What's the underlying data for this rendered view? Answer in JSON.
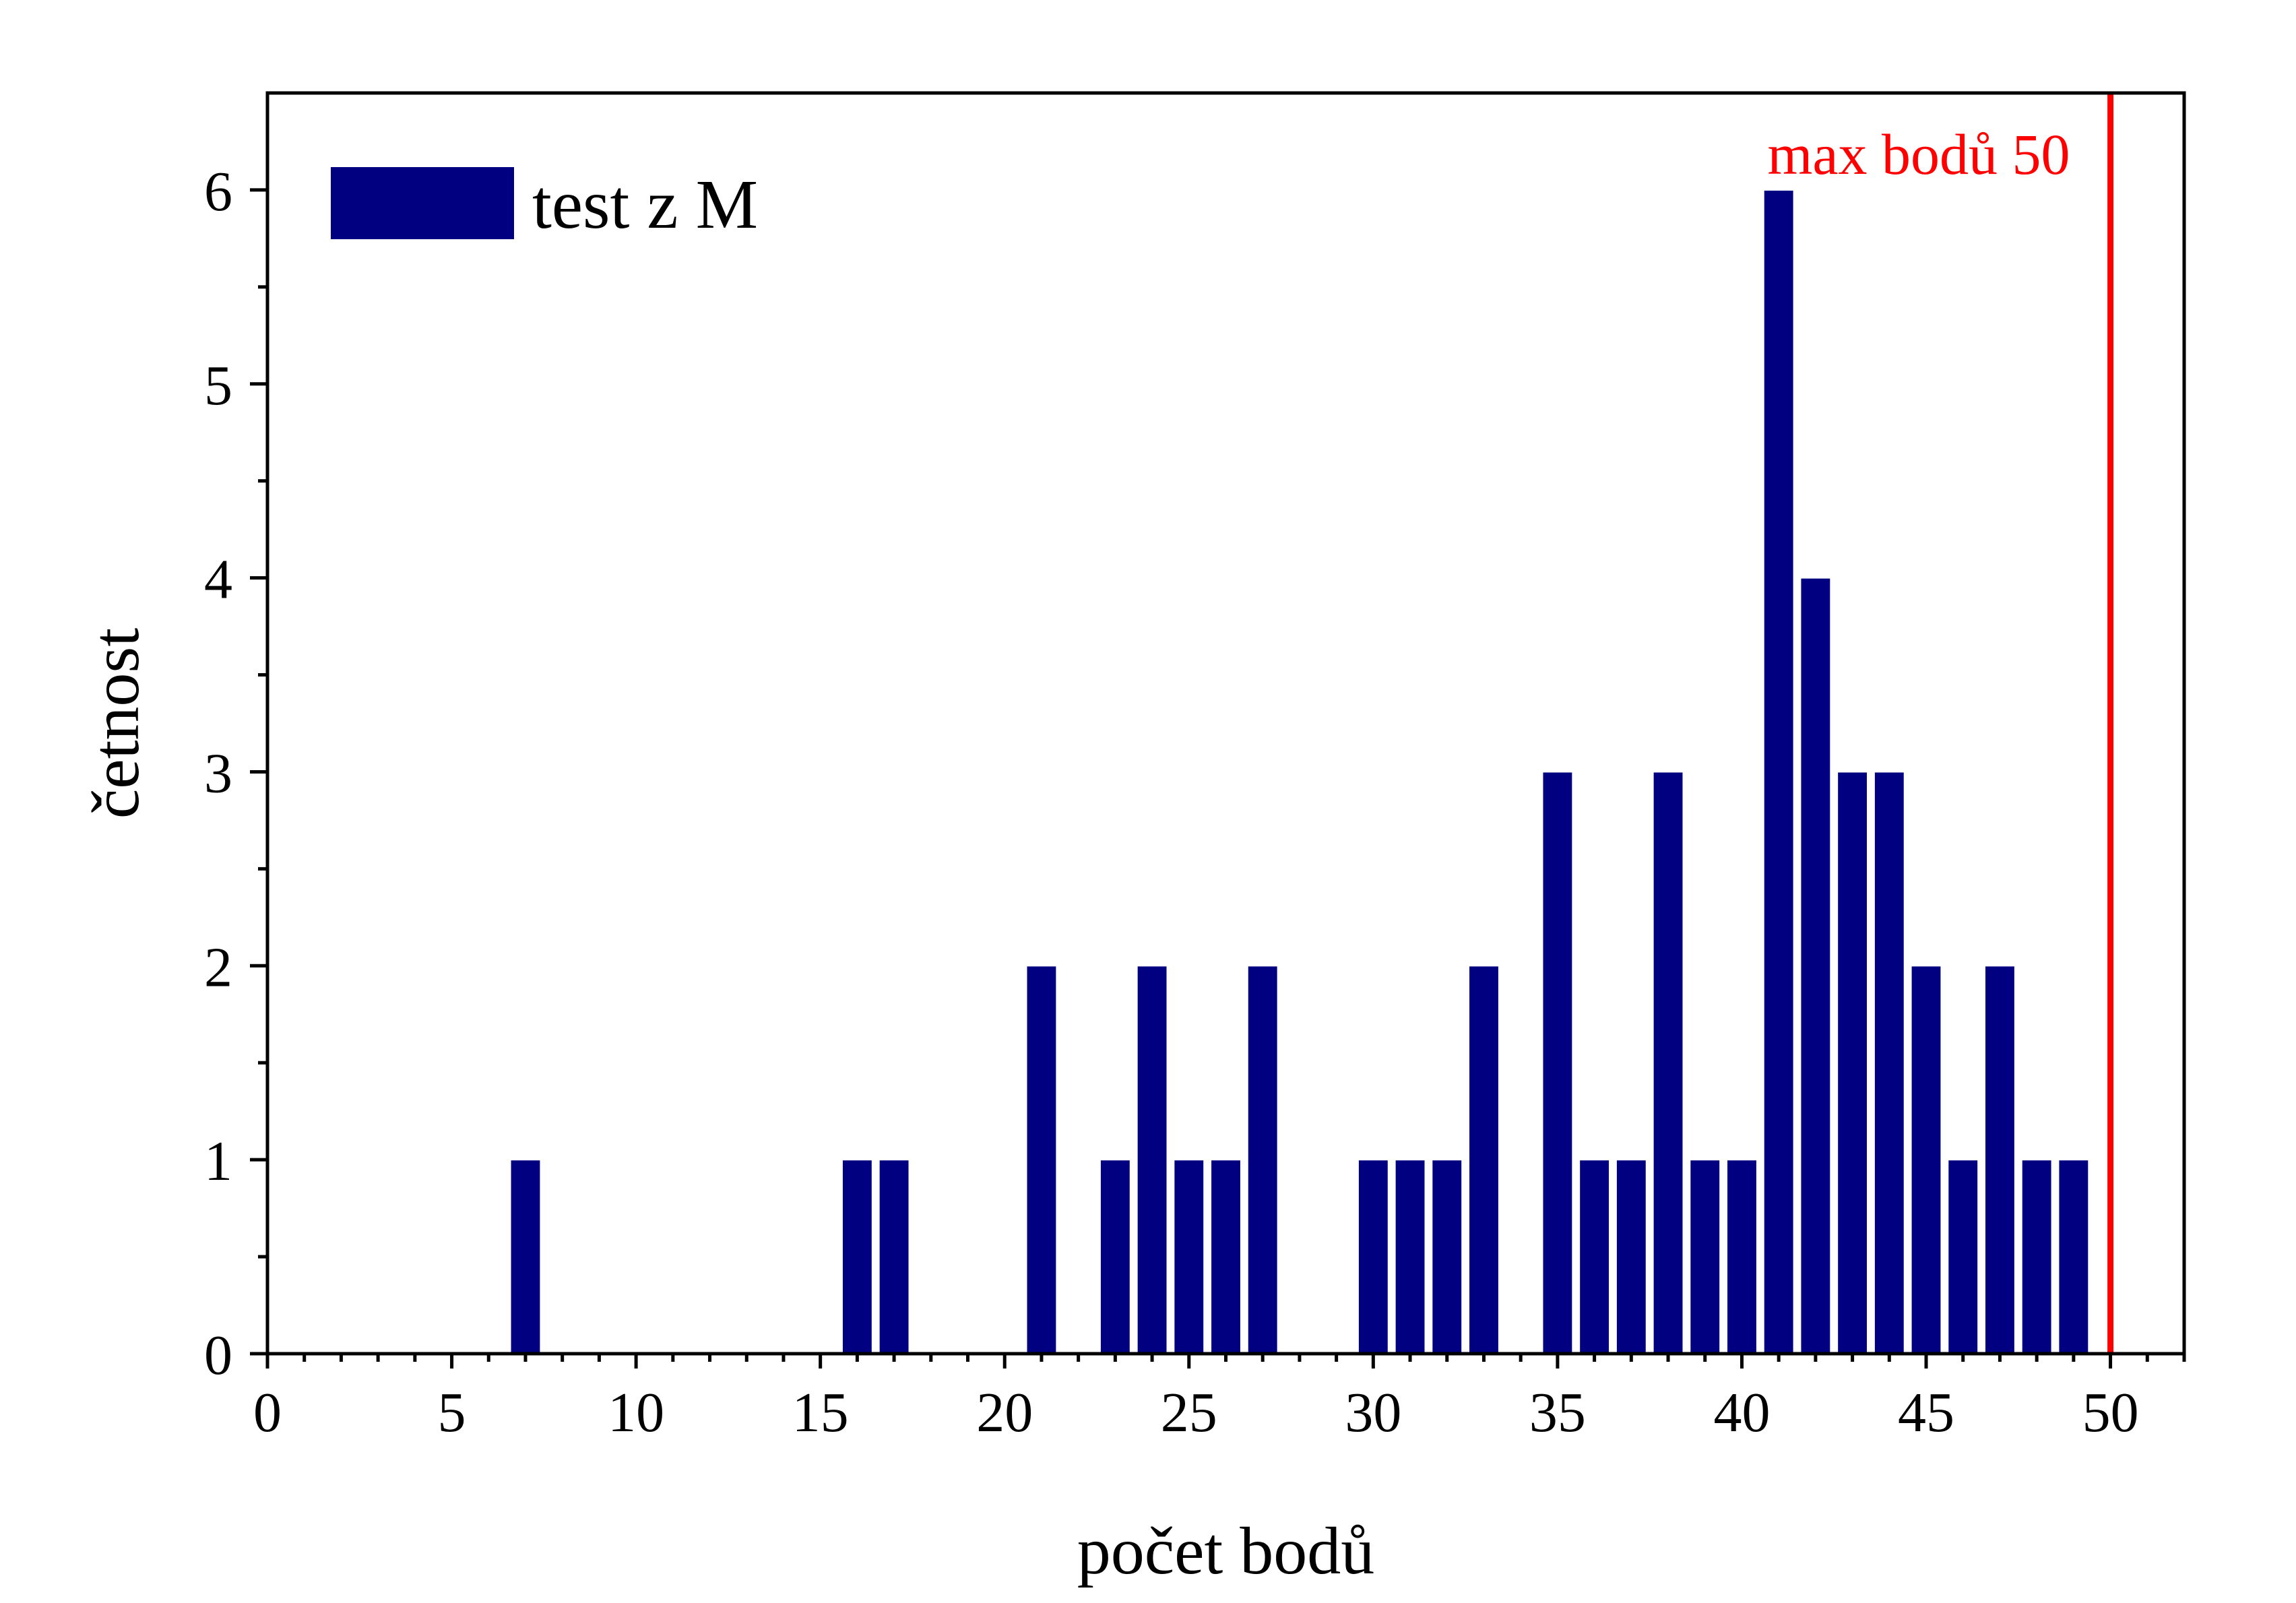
{
  "chart_data": {
    "type": "bar",
    "xlabel": "počet bodů",
    "ylabel": "četnost",
    "xlim": [
      0,
      52
    ],
    "ylim": [
      0,
      6.5
    ],
    "x_major_ticks": [
      0,
      5,
      10,
      15,
      20,
      25,
      30,
      35,
      40,
      45,
      50
    ],
    "x_tick_labels": [
      "0",
      "5",
      "10",
      "15",
      "20",
      "25",
      "30",
      "35",
      "40",
      "45",
      "50"
    ],
    "y_major_ticks": [
      0,
      1,
      2,
      3,
      4,
      5,
      6
    ],
    "y_tick_labels": [
      "0",
      "1",
      "2",
      "3",
      "4",
      "5",
      "6"
    ],
    "grid": false,
    "legend_position": "top-left",
    "series": [
      {
        "name": "test z M",
        "color": "#000080",
        "x": [
          7,
          16,
          17,
          21,
          23,
          24,
          25,
          26,
          27,
          30,
          31,
          32,
          33,
          35,
          36,
          37,
          38,
          39,
          40,
          41,
          42,
          43,
          44,
          45,
          46,
          47,
          48,
          49
        ],
        "values": [
          1,
          1,
          1,
          2,
          1,
          2,
          1,
          1,
          2,
          1,
          1,
          1,
          2,
          3,
          1,
          1,
          3,
          1,
          1,
          6,
          4,
          3,
          3,
          2,
          1,
          2,
          1,
          1
        ]
      }
    ],
    "annotations": [
      {
        "type": "vertical-line",
        "x": 50,
        "label": "max bodů 50",
        "color": "#ff0000"
      }
    ]
  }
}
